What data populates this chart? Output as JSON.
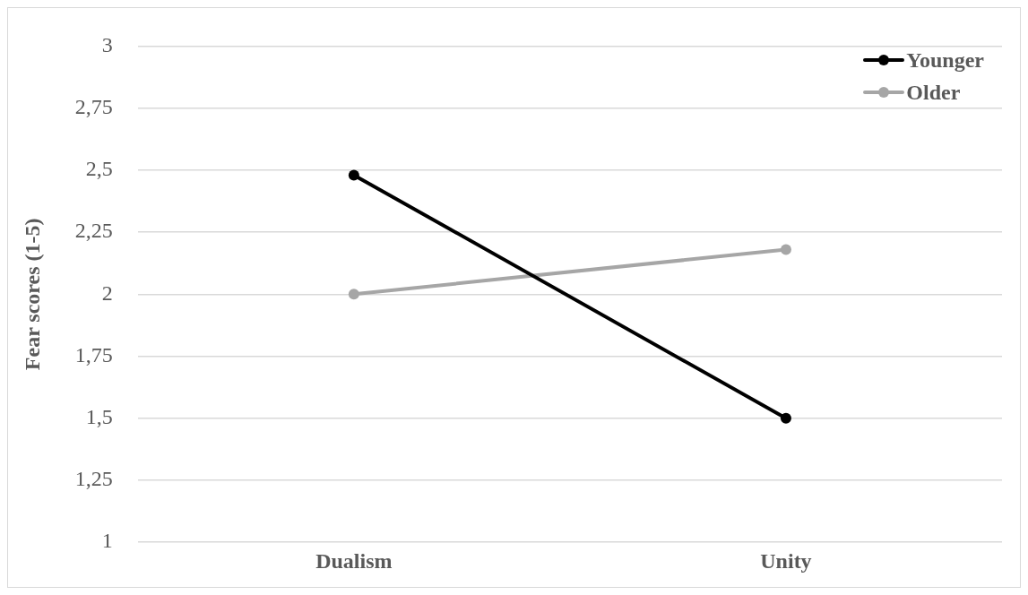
{
  "chart_data": {
    "type": "line",
    "ylabel": "Fear scores (1-5)",
    "categories": [
      "Dualism",
      "Unity"
    ],
    "series": [
      {
        "name": "Younger",
        "color": "#000000",
        "values": [
          2.48,
          1.5
        ]
      },
      {
        "name": "Older",
        "color": "#a6a6a6",
        "values": [
          2.0,
          2.18
        ]
      }
    ],
    "ylim": [
      1,
      3
    ],
    "yticks": [
      1,
      {
        "value": 1.25,
        "label": "1,25"
      },
      {
        "value": 1.5,
        "label": "1,5"
      },
      {
        "value": 1.75,
        "label": "1,75"
      },
      2,
      {
        "value": 2.25,
        "label": "2,25"
      },
      {
        "value": 2.5,
        "label": "2,5"
      },
      {
        "value": 2.75,
        "label": "2,75"
      },
      3
    ],
    "grid": "y",
    "legend": "top right",
    "marker": "circle",
    "line_style": "solid"
  }
}
